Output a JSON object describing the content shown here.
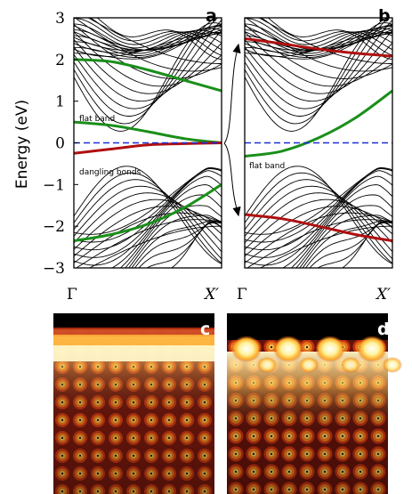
{
  "chart_data": [
    {
      "panel": "a",
      "type": "line",
      "ylabel": "Energy (eV)",
      "ylim": [
        -3,
        3
      ],
      "yticks": [
        "3",
        "2",
        "1",
        "0",
        "−1",
        "−2",
        "−3"
      ],
      "yticks_values": [
        3,
        2,
        1,
        0,
        -1,
        -2,
        -3
      ],
      "xticks": [
        "Γ",
        "X′"
      ],
      "fermi_level": 0,
      "annotations": [
        "flat band",
        "dangling bonds"
      ],
      "colors": {
        "bulk": "#000000",
        "surface_flat": "#1a8f1a",
        "dangling": "#b01010",
        "fermi": "#1a2fd6"
      },
      "series": [
        {
          "x": [
            0,
            0.25,
            0.5,
            0.75,
            1
          ],
          "y": [
            2.0,
            1.95,
            1.75,
            1.5,
            1.25
          ]
        },
        {
          "x": [
            0,
            0.25,
            0.5,
            0.75,
            1
          ],
          "y": [
            0.5,
            0.42,
            0.27,
            0.1,
            0.0
          ]
        },
        {
          "x": [
            0,
            0.25,
            0.5,
            0.75,
            1
          ],
          "y": [
            -0.25,
            -0.15,
            -0.05,
            -0.02,
            0.0
          ]
        },
        {
          "x": [
            0,
            0.25,
            0.5,
            0.75,
            1
          ],
          "y": [
            -2.35,
            -2.2,
            -1.95,
            -1.55,
            -1.0
          ]
        }
      ]
    },
    {
      "panel": "b",
      "type": "line",
      "ylim": [
        -3,
        3
      ],
      "xticks": [
        "Γ",
        "X′"
      ],
      "fermi_level": 0,
      "annotations": [
        "flat band"
      ],
      "series": [
        {
          "x": [
            0,
            0.25,
            0.5,
            0.75,
            1
          ],
          "y": [
            2.5,
            2.38,
            2.25,
            2.15,
            2.08
          ]
        },
        {
          "x": [
            0,
            0.25,
            0.5,
            0.75,
            1
          ],
          "y": [
            -0.32,
            -0.2,
            0.12,
            0.6,
            1.25
          ]
        },
        {
          "x": [
            0,
            0.25,
            0.5,
            0.75,
            1
          ],
          "y": [
            -1.72,
            -1.82,
            -2.0,
            -2.2,
            -2.35
          ]
        }
      ]
    }
  ],
  "stm_panels": [
    {
      "label": "c"
    },
    {
      "label": "d"
    }
  ]
}
